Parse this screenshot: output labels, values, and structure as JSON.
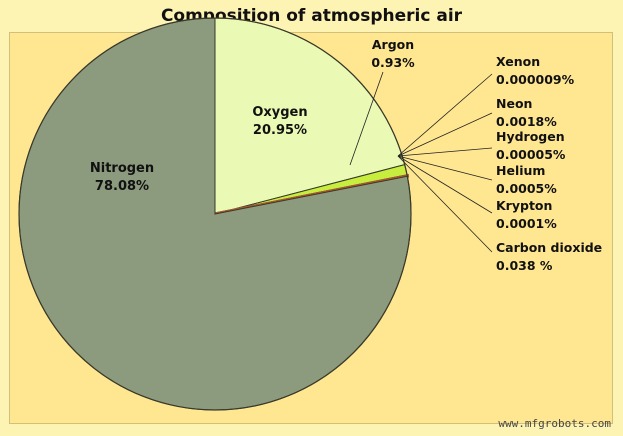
{
  "chart_data": {
    "type": "pie",
    "title": "Composition of atmospheric air",
    "slices": [
      {
        "name": "Nitrogen",
        "label": "78.08%",
        "value": 78.08,
        "color": "#8c9a7e"
      },
      {
        "name": "Oxygen",
        "label": "20.95%",
        "value": 20.95,
        "color": "#eaf9b4"
      },
      {
        "name": "Argon",
        "label": "0.93%",
        "value": 0.93,
        "color": "#c7ee3e"
      },
      {
        "name": "Xenon",
        "label": "0.000009%",
        "value": 9e-06,
        "color": "#6b7a5a"
      },
      {
        "name": "Neon",
        "label": "0.0018%",
        "value": 0.0018,
        "color": "#6b7a5a"
      },
      {
        "name": "Hydrogen",
        "label": "0.00005%",
        "value": 5e-05,
        "color": "#6b7a5a"
      },
      {
        "name": "Helium",
        "label": "0.0005%",
        "value": 0.0005,
        "color": "#6b7a5a"
      },
      {
        "name": "Krypton",
        "label": "0.0001%",
        "value": 0.0001,
        "color": "#6b7a5a"
      },
      {
        "name": "Carbon dioxide",
        "label": "0.038 %",
        "value": 0.038,
        "color": "#b0532a"
      }
    ]
  },
  "watermark": "www.mfgrobots.com"
}
